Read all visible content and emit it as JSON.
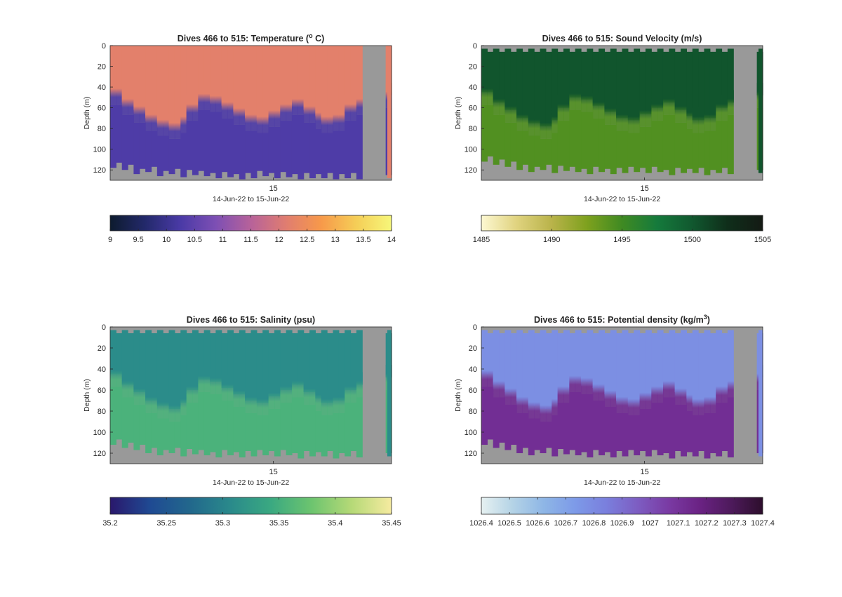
{
  "chart_data": [
    {
      "type": "heatmap",
      "title": "Dives 466 to 515: Temperature (",
      "title_sup": "o",
      "title_end": " C)",
      "ylabel": "Depth (m)",
      "xtick": "15",
      "xlabel": "14-Jun-22 to 15-Jun-22",
      "yticks": [
        "0",
        "20",
        "40",
        "60",
        "80",
        "100",
        "120"
      ],
      "ylim": [
        0,
        130
      ],
      "colorbar": {
        "range": [
          9,
          14
        ],
        "ticks": [
          9,
          9.5,
          10,
          10.5,
          11,
          11.5,
          12,
          12.5,
          13,
          13.5,
          14
        ],
        "tick_labels": [
          "9",
          "9.5",
          "10",
          "10.5",
          "11",
          "11.5",
          "12",
          "12.5",
          "13",
          "13.5",
          "14"
        ],
        "colors": [
          "#0d1b2e",
          "#23296b",
          "#4a3aa6",
          "#7d4fb4",
          "#b7629a",
          "#e07d70",
          "#f7994a",
          "#f5ce57",
          "#f6f77a"
        ]
      },
      "upper_value": 12.2,
      "lower_value": 10.3,
      "thermocline_depth_m": [
        45,
        55,
        62,
        70,
        75,
        78,
        72,
        60,
        50,
        52,
        58,
        64,
        70,
        72,
        66,
        60,
        55,
        62,
        68,
        72,
        70,
        60,
        55,
        50,
        48
      ],
      "bottom_depth_m": [
        116,
        118,
        122,
        120,
        124,
        122,
        125,
        123,
        124,
        126,
        125,
        127,
        126,
        124,
        126,
        125,
        127,
        126,
        127,
        126,
        127,
        126,
        127,
        126,
        128
      ],
      "surface_gap": false,
      "missing_x": [
        [
          0.345,
          0.36
        ],
        [
          0.905,
          0.98
        ]
      ]
    },
    {
      "type": "heatmap",
      "title": "Dives 466 to 515: Sound Velocity (m/s)",
      "ylabel": "Depth (m)",
      "xtick": "15",
      "xlabel": "14-Jun-22 to 15-Jun-22",
      "yticks": [
        "0",
        "20",
        "40",
        "60",
        "80",
        "100",
        "120"
      ],
      "ylim": [
        0,
        130
      ],
      "colorbar": {
        "range": [
          1485,
          1505
        ],
        "ticks": [
          1485,
          1490,
          1495,
          1500,
          1505
        ],
        "tick_labels": [
          "1485",
          "1490",
          "1495",
          "1500",
          "1505"
        ],
        "colors": [
          "#fdf8d2",
          "#e0d37f",
          "#b9b34a",
          "#7ea11e",
          "#3f8a22",
          "#157a3c",
          "#11582f",
          "#0f2e1a",
          "#141a14"
        ]
      },
      "upper_value": 1500.2,
      "lower_value": 1494.3,
      "thermocline_depth_m": [
        45,
        55,
        62,
        70,
        75,
        78,
        72,
        60,
        50,
        52,
        58,
        64,
        70,
        72,
        66,
        60,
        55,
        62,
        68,
        72,
        70,
        60,
        55,
        50,
        48
      ],
      "bottom_depth_m": [
        110,
        113,
        115,
        118,
        120,
        118,
        121,
        119,
        120,
        122,
        120,
        122,
        121,
        120,
        121,
        120,
        123,
        121,
        122,
        121,
        123,
        121,
        122,
        121,
        123
      ],
      "surface_gap": true,
      "missing_x": [
        [
          0.345,
          0.36
        ],
        [
          0.905,
          0.98
        ]
      ]
    },
    {
      "type": "heatmap",
      "title": "Dives 466 to 515: Salinity (psu)",
      "ylabel": "Depth (m)",
      "xtick": "15",
      "xlabel": "14-Jun-22 to 15-Jun-22",
      "yticks": [
        "0",
        "20",
        "40",
        "60",
        "80",
        "100",
        "120"
      ],
      "ylim": [
        0,
        130
      ],
      "colorbar": {
        "range": [
          35.2,
          35.45
        ],
        "ticks": [
          35.2,
          35.25,
          35.3,
          35.35,
          35.4,
          35.45
        ],
        "tick_labels": [
          "35.2",
          "35.25",
          "35.3",
          "35.35",
          "35.4",
          "35.45"
        ],
        "colors": [
          "#2a186c",
          "#1f4a93",
          "#22688c",
          "#2a8a8b",
          "#3aa981",
          "#6cc46f",
          "#b5d977",
          "#f6eba0"
        ]
      },
      "upper_value": 35.31,
      "lower_value": 35.355,
      "thermocline_depth_m": [
        45,
        55,
        62,
        70,
        75,
        78,
        72,
        60,
        50,
        52,
        58,
        64,
        70,
        72,
        66,
        60,
        55,
        62,
        68,
        72,
        70,
        60,
        55,
        50,
        48
      ],
      "bottom_depth_m": [
        110,
        113,
        115,
        118,
        120,
        118,
        121,
        119,
        120,
        122,
        120,
        122,
        121,
        120,
        121,
        120,
        123,
        121,
        122,
        121,
        123,
        121,
        122,
        121,
        123
      ],
      "surface_gap": true,
      "missing_x": [
        [
          0.345,
          0.36
        ],
        [
          0.905,
          0.98
        ]
      ]
    },
    {
      "type": "heatmap",
      "title": "Dives 466 to 515: Potential density (kg/m",
      "title_sup": "3",
      "title_end": ")",
      "ylabel": "Depth (m)",
      "xtick": "15",
      "xlabel": "14-Jun-22 to 15-Jun-22",
      "yticks": [
        "0",
        "20",
        "40",
        "60",
        "80",
        "100",
        "120"
      ],
      "ylim": [
        0,
        130
      ],
      "colorbar": {
        "range": [
          1026.4,
          1027.4
        ],
        "ticks": [
          1026.4,
          1026.5,
          1026.6,
          1026.7,
          1026.8,
          1026.9,
          1027,
          1027.1,
          1027.2,
          1027.3,
          1027.4
        ],
        "tick_labels": [
          "1026.4",
          "1026.5",
          "1026.6",
          "1026.7",
          "1026.8",
          "1026.9",
          "1027",
          "1027.1",
          "1027.2",
          "1027.3",
          "1027.4"
        ],
        "colors": [
          "#e6f1f1",
          "#b4d3e6",
          "#8eb6e6",
          "#7d9ae8",
          "#7a7fdd",
          "#7d5dc2",
          "#7a3aa3",
          "#6a2283",
          "#4d1a5b",
          "#2d0e2c"
        ]
      },
      "upper_value": 1026.78,
      "lower_value": 1027.12,
      "thermocline_depth_m": [
        45,
        55,
        62,
        70,
        75,
        78,
        72,
        60,
        50,
        52,
        58,
        64,
        70,
        72,
        66,
        60,
        55,
        62,
        68,
        72,
        70,
        60,
        55,
        50,
        48
      ],
      "bottom_depth_m": [
        110,
        113,
        115,
        118,
        120,
        118,
        121,
        119,
        120,
        122,
        120,
        122,
        121,
        120,
        121,
        120,
        123,
        121,
        122,
        121,
        123,
        121,
        122,
        121,
        123
      ],
      "surface_gap": true,
      "missing_x": [
        [
          0.345,
          0.36
        ],
        [
          0.905,
          0.98
        ]
      ]
    }
  ]
}
